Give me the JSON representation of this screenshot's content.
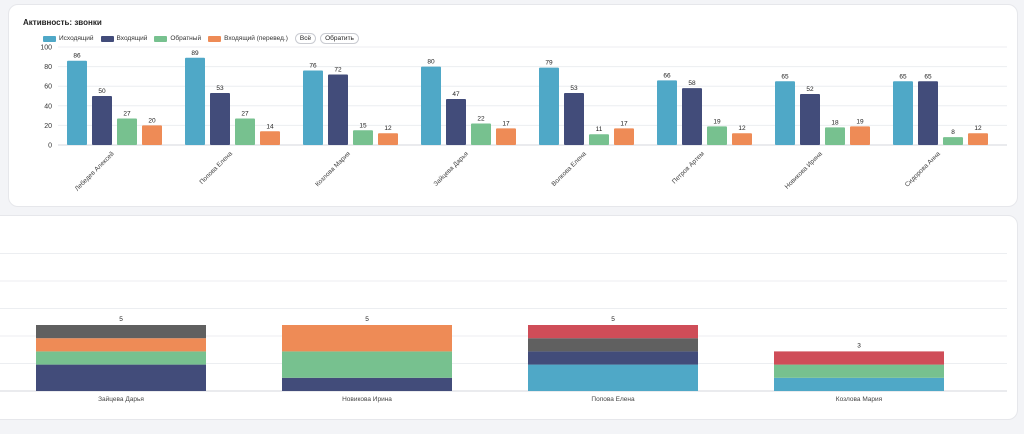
{
  "colors": {
    "out": "#4fa8c7",
    "in": "#424c7a",
    "back": "#77c18f",
    "redir": "#ee8b56",
    "gray": "#606060",
    "red": "#cf4d58"
  },
  "chart_data": [
    {
      "type": "bar",
      "title": "Активность: звонки",
      "categories": [
        "Лебедев Алексей",
        "Попова Елена",
        "Козлова Мария",
        "Зайцева Дарья",
        "Волкова Елена",
        "Петров Артем",
        "Новикова Ирина",
        "Сидорова Анна"
      ],
      "series": [
        {
          "name": "Исходящий",
          "color": "#4fa8c7",
          "values": [
            86,
            89,
            76,
            80,
            79,
            66,
            65,
            65
          ]
        },
        {
          "name": "Входящий",
          "color": "#424c7a",
          "values": [
            50,
            53,
            72,
            47,
            53,
            58,
            52,
            65
          ]
        },
        {
          "name": "Обратный",
          "color": "#77c18f",
          "values": [
            27,
            27,
            15,
            22,
            11,
            19,
            18,
            8
          ]
        },
        {
          "name": "Входящий (перевед.)",
          "color": "#ee8b56",
          "values": [
            20,
            14,
            12,
            17,
            17,
            12,
            19,
            12
          ]
        }
      ],
      "yticks": [
        "0",
        "20",
        "40",
        "60",
        "80",
        "100"
      ],
      "ylim": [
        0,
        100
      ],
      "legend_position": "top-left",
      "grid": true,
      "buttons": {
        "all": "Всё",
        "invert": "Обратить"
      }
    },
    {
      "type": "bar",
      "stacked": true,
      "categories": [
        "Зайцева Дарья",
        "Новикова Ирина",
        "Попова Елена",
        "Козлова Мария"
      ],
      "totals": [
        "5",
        "5",
        "5",
        "3"
      ],
      "segments": [
        [
          {
            "value": 2,
            "color": "#424c7a"
          },
          {
            "value": 1,
            "color": "#77c18f"
          },
          {
            "value": 1,
            "color": "#ee8b56"
          },
          {
            "value": 1,
            "color": "#606060"
          }
        ],
        [
          {
            "value": 1,
            "color": "#424c7a"
          },
          {
            "value": 2,
            "color": "#77c18f"
          },
          {
            "value": 2,
            "color": "#ee8b56"
          }
        ],
        [
          {
            "value": 2,
            "color": "#4fa8c7"
          },
          {
            "value": 1,
            "color": "#424c7a"
          },
          {
            "value": 1,
            "color": "#606060"
          },
          {
            "value": 1,
            "color": "#cf4d58"
          }
        ],
        [
          {
            "value": 1,
            "color": "#4fa8c7"
          },
          {
            "value": 1,
            "color": "#77c18f"
          },
          {
            "value": 1,
            "color": "#cf4d58"
          }
        ]
      ],
      "grid": true
    }
  ]
}
